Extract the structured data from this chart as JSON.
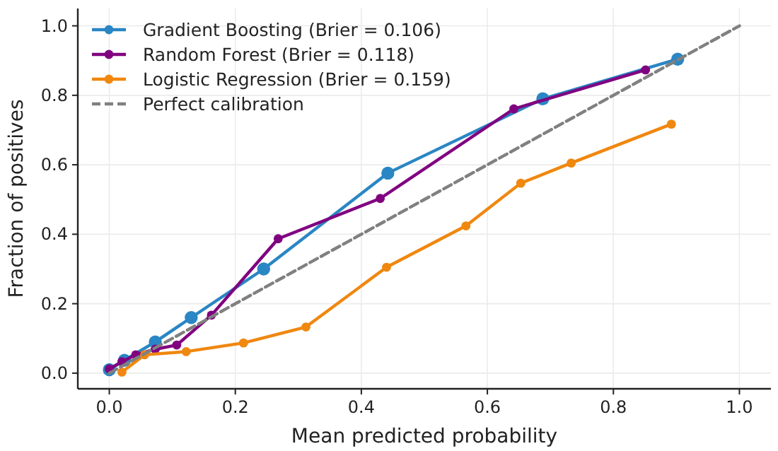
{
  "chart_data": {
    "type": "line",
    "xlabel": "Mean predicted probability",
    "ylabel": "Fraction of positives",
    "xlim": [
      -0.05,
      1.05
    ],
    "ylim": [
      -0.045,
      1.05
    ],
    "xticks": [
      {
        "value": 0,
        "label": "0.0"
      },
      0.2,
      0.4,
      0.6,
      0.8,
      {
        "value": 1,
        "label": "1.0"
      }
    ],
    "yticks": [
      {
        "value": 0,
        "label": "0.0"
      },
      0.2,
      0.4,
      0.6,
      0.8,
      {
        "value": 1,
        "label": "1.0"
      }
    ],
    "grid": true,
    "legend": "top left",
    "marker": "circle",
    "series": [
      {
        "name": "Gradient Boosting (Brier = 0.106)",
        "color": "#2a86c4",
        "x": [
          0.0,
          0.024,
          0.073,
          0.13,
          0.245,
          0.442,
          0.688,
          0.902
        ],
        "values": [
          0.01,
          0.037,
          0.09,
          0.16,
          0.3,
          0.576,
          0.79,
          0.904
        ]
      },
      {
        "name": "Random Forest (Brier = 0.118)",
        "color": "#800080",
        "x": [
          0.0,
          0.02,
          0.042,
          0.073,
          0.107,
          0.162,
          0.268,
          0.43,
          0.642,
          0.851
        ],
        "values": [
          0.012,
          0.033,
          0.053,
          0.069,
          0.081,
          0.167,
          0.387,
          0.503,
          0.761,
          0.873
        ]
      },
      {
        "name": "Logistic Regression (Brier = 0.159)",
        "color": "#f0870f",
        "x": [
          0.02,
          0.056,
          0.122,
          0.213,
          0.312,
          0.44,
          0.566,
          0.653,
          0.733,
          0.892
        ],
        "values": [
          0.003,
          0.053,
          0.062,
          0.087,
          0.133,
          0.305,
          0.424,
          0.547,
          0.605,
          0.717
        ]
      },
      {
        "name": "Perfect calibration",
        "color": "#808080",
        "type": "line",
        "marker": "none",
        "line_style": "dashed",
        "x": [
          0,
          1
        ],
        "values": [
          0,
          1
        ]
      }
    ]
  }
}
